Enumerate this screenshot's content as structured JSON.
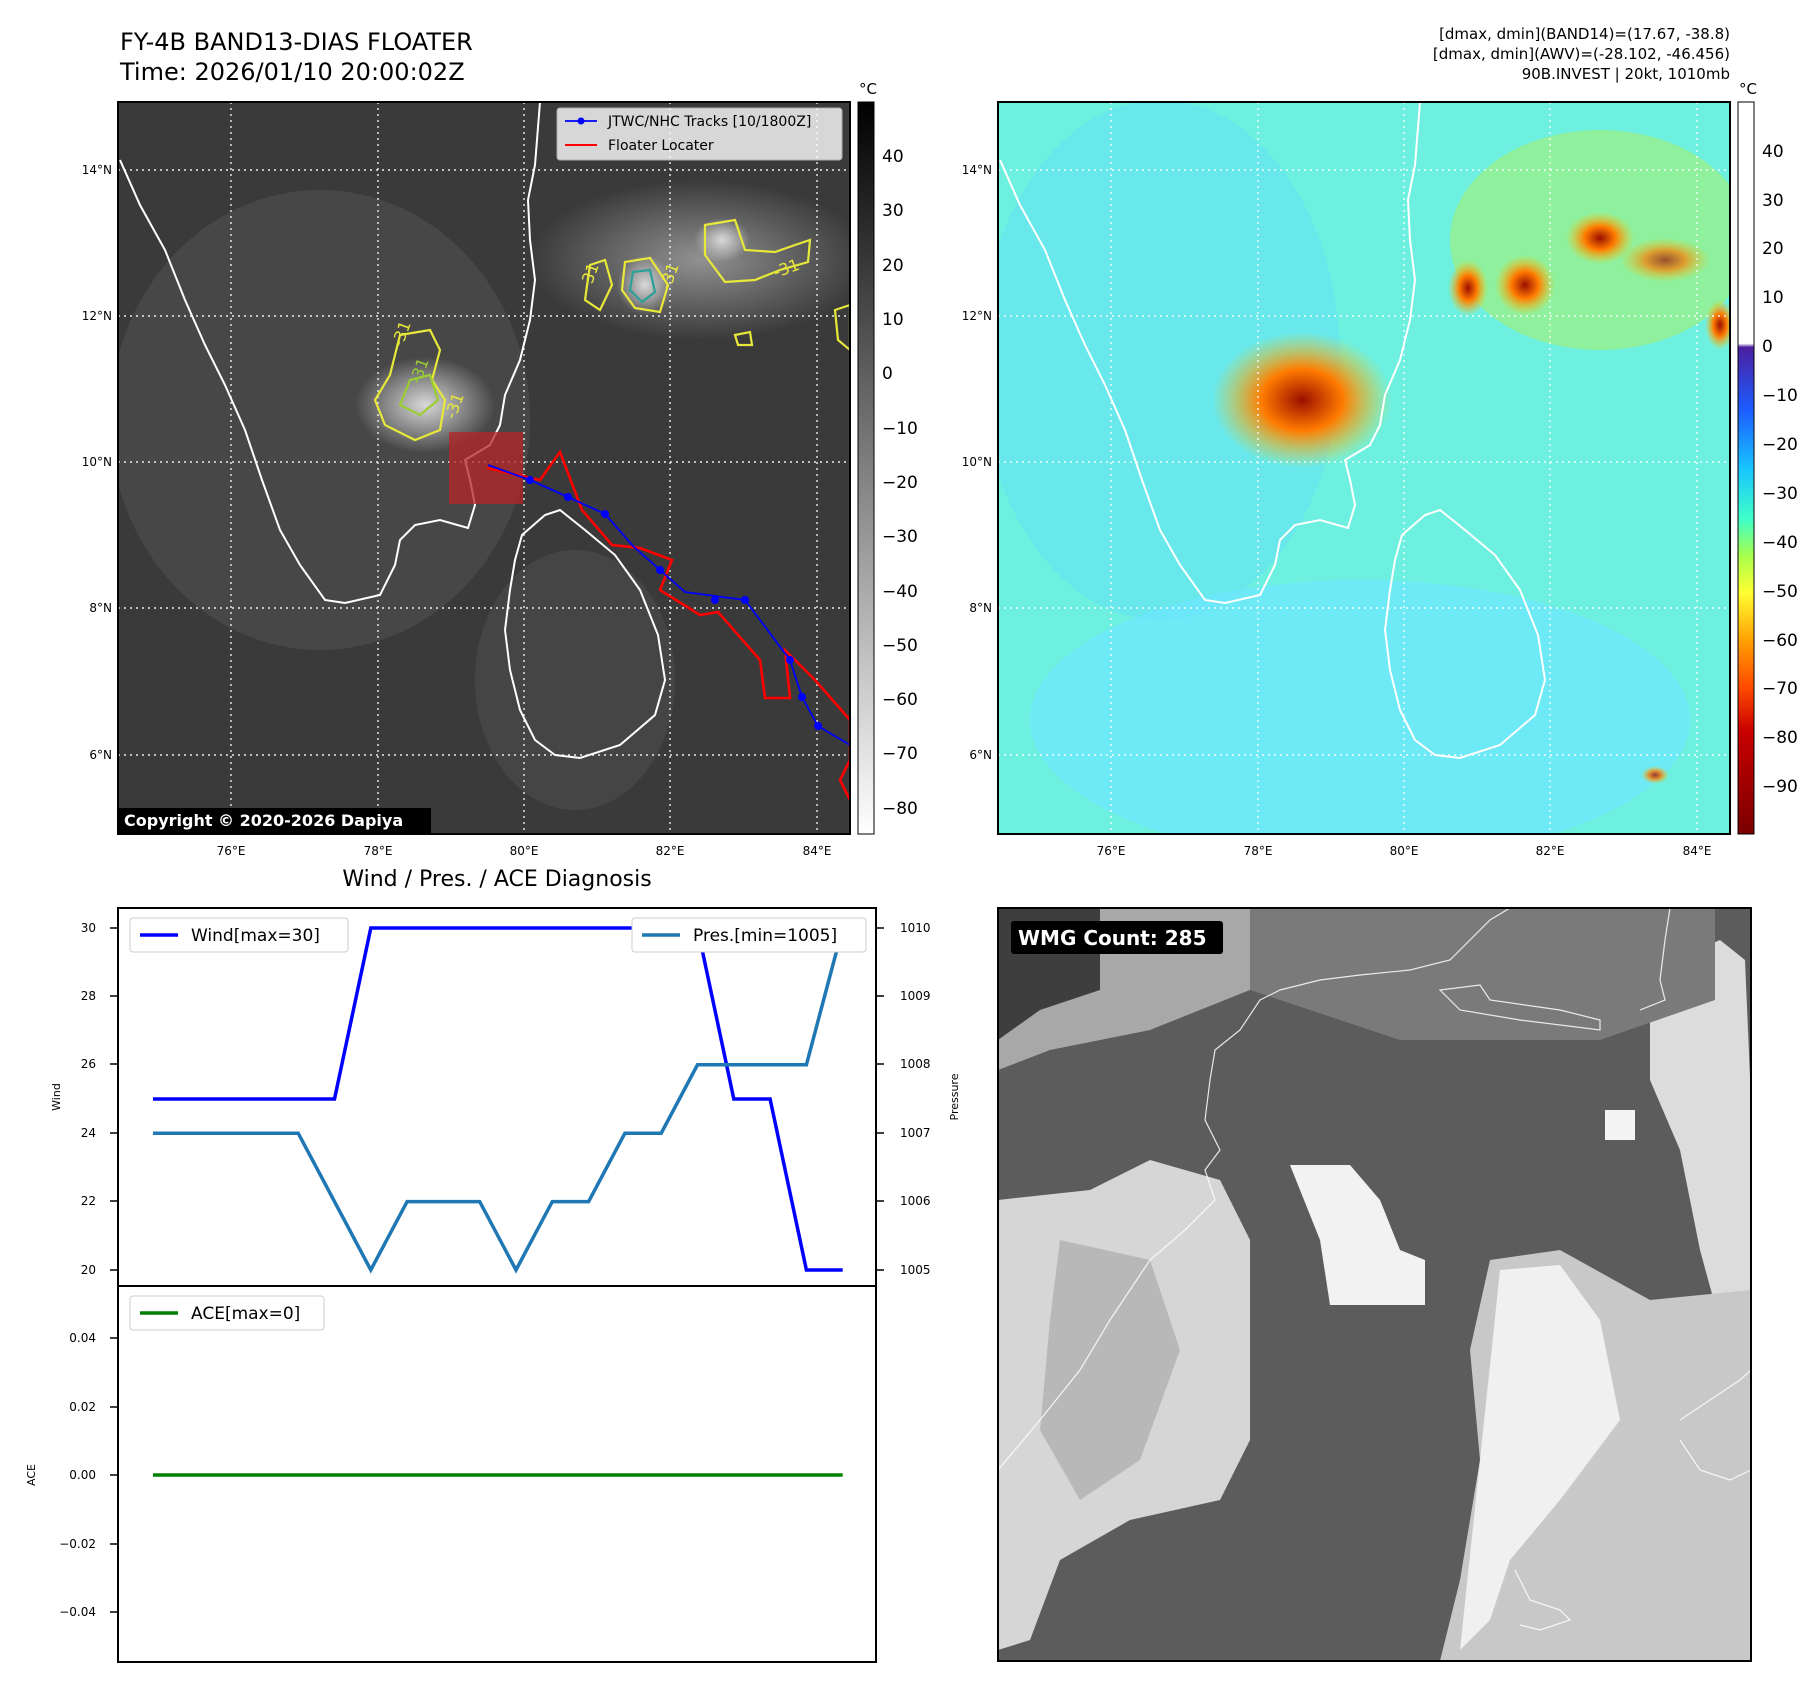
{
  "header": {
    "title": "FY-4B BAND13-DIAS FLOATER",
    "time": "Time: 2026/01/10 20:00:02Z",
    "meta": [
      "[dmax, dmin](BAND14)=(17.67, -38.8)",
      "[dmax, dmin](AWV)=(-28.102, -46.456)",
      "90B.INVEST | 20kt, 1010mb"
    ]
  },
  "map_panel": {
    "lon_ticks": [
      "76°E",
      "78°E",
      "80°E",
      "82°E",
      "84°E"
    ],
    "lat_ticks": [
      "14°N",
      "12°N",
      "10°N",
      "8°N",
      "6°N"
    ],
    "contour_labels": [
      "-31",
      "-31",
      "-31",
      "-31",
      "-31",
      "-31"
    ],
    "copyright": "Copyright © 2020-2026 Dapiya",
    "legend": [
      "JTWC/NHC Tracks [10/1800Z]",
      "Floater Locater"
    ],
    "cbar_unit": "°C",
    "cbar_ticks": [
      "40",
      "30",
      "20",
      "10",
      "0",
      "−10",
      "−20",
      "−30",
      "−40",
      "−50",
      "−60",
      "−70",
      "−80"
    ]
  },
  "awv_panel": {
    "lon_ticks": [
      "76°E",
      "78°E",
      "80°E",
      "82°E",
      "84°E"
    ],
    "lat_ticks": [
      "14°N",
      "12°N",
      "10°N",
      "8°N",
      "6°N"
    ],
    "cbar_unit": "°C",
    "cbar_ticks": [
      "40",
      "30",
      "20",
      "10",
      "0",
      "−10",
      "−20",
      "−30",
      "−40",
      "−50",
      "−60",
      "−70",
      "−80",
      "−90"
    ]
  },
  "wmg_panel": {
    "label": "WMG Count: 285"
  },
  "colors": {
    "wind": "#0000ff",
    "pressure": "#1f77b4",
    "ace": "#008000",
    "track": "#0000ff",
    "floater": "#ff0000"
  },
  "chart_data": [
    {
      "type": "line",
      "title": "Wind / Pres. / ACE Diagnosis",
      "ylabel": "Wind",
      "y2label": "Pressure",
      "x": [
        0,
        1,
        2,
        3,
        4,
        5,
        6,
        7,
        8,
        9,
        10,
        11,
        12,
        13,
        14,
        15,
        16,
        17,
        18,
        19
      ],
      "series": [
        {
          "name": "Wind[max=30]",
          "axis": "left",
          "values": [
            25,
            25,
            25,
            25,
            25,
            25,
            30,
            30,
            30,
            30,
            30,
            30,
            30,
            30,
            30,
            30,
            25,
            25,
            20,
            20
          ]
        },
        {
          "name": "Pres.[min=1005]",
          "axis": "right",
          "values": [
            1007,
            1007,
            1007,
            1007,
            1007,
            1006,
            1005,
            1006,
            1006,
            1006,
            1005,
            1006,
            1006,
            1007,
            1007,
            1008,
            1008,
            1008,
            1008,
            1010
          ]
        }
      ],
      "ylim": [
        19.5,
        30.4
      ],
      "y2lim": [
        1004.75,
        1010.2
      ],
      "yticks": [
        "30",
        "28",
        "26",
        "24",
        "22",
        "20"
      ],
      "y2ticks": [
        "1010",
        "1009",
        "1008",
        "1007",
        "1006",
        "1005"
      ],
      "legend": [
        "upper-left",
        "upper-right"
      ]
    },
    {
      "type": "line",
      "ylabel": "ACE",
      "x": [
        0,
        1,
        2,
        3,
        4,
        5,
        6,
        7,
        8,
        9,
        10,
        11,
        12,
        13,
        14,
        15,
        16,
        17,
        18,
        19
      ],
      "series": [
        {
          "name": "ACE[max=0]",
          "values": [
            0,
            0,
            0,
            0,
            0,
            0,
            0,
            0,
            0,
            0,
            0,
            0,
            0,
            0,
            0,
            0,
            0,
            0,
            0,
            0
          ]
        }
      ],
      "ylim": [
        -0.055,
        0.055
      ],
      "yticks": [
        "0.04",
        "0.02",
        "0.00",
        "−0.02",
        "−0.04"
      ],
      "legend": "upper-left"
    }
  ]
}
